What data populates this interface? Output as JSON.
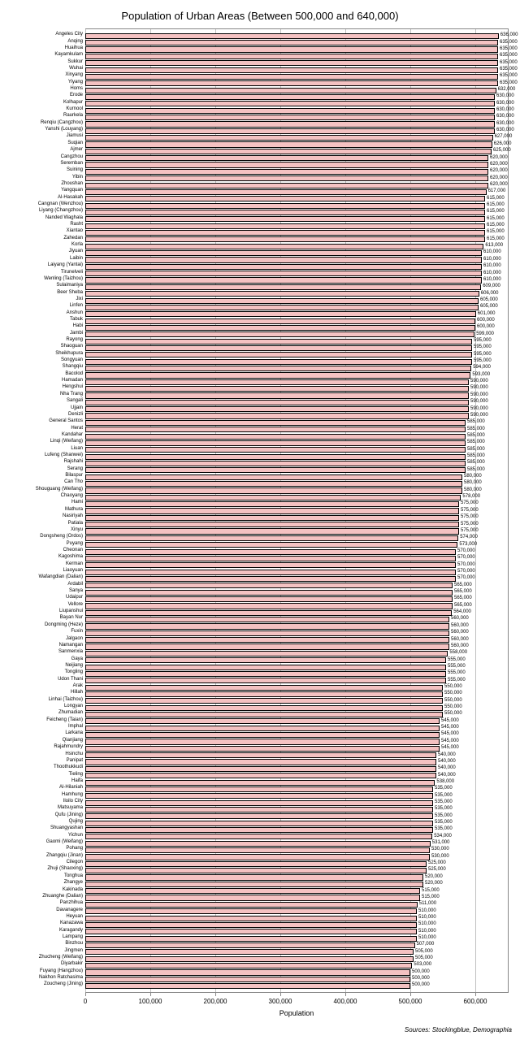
{
  "chart": {
    "type": "bar-horizontal",
    "title": "Population of Urban Areas (Between 500,000 and 640,000)",
    "x_axis_label": "Population",
    "sources": "Sources: Stockingblue, Demographia",
    "bar_color": "#f4c2c2",
    "bar_border": "#000000",
    "background": "#ffffff",
    "grid_color": "#bfbfbf",
    "title_fontsize": 13,
    "label_fontsize": 6,
    "value_fontsize": 6,
    "axis_fontsize": 8,
    "x_min": 0,
    "x_max": 650000,
    "x_ticks": [
      0,
      100000,
      200000,
      300000,
      400000,
      500000,
      600000
    ],
    "x_tick_labels": [
      "0",
      "100,000",
      "200,000",
      "300,000",
      "400,000",
      "500,000",
      "600,000"
    ],
    "data": [
      {
        "label": "Angeles City",
        "value": 636000,
        "vlabel": "636,000"
      },
      {
        "label": "Anqing",
        "value": 635000,
        "vlabel": "635,000"
      },
      {
        "label": "Huaihua",
        "value": 635000,
        "vlabel": "635,000"
      },
      {
        "label": "Kayamkulam",
        "value": 635000,
        "vlabel": "635,000"
      },
      {
        "label": "Sukkur",
        "value": 635000,
        "vlabel": "635,000"
      },
      {
        "label": "Wuhai",
        "value": 635000,
        "vlabel": "635,000"
      },
      {
        "label": "Xinyang",
        "value": 635000,
        "vlabel": "635,000"
      },
      {
        "label": "Yiyang",
        "value": 635000,
        "vlabel": "635,000"
      },
      {
        "label": "Homs",
        "value": 632000,
        "vlabel": "632,000"
      },
      {
        "label": "Erode",
        "value": 630000,
        "vlabel": "630,000"
      },
      {
        "label": "Kolhapur",
        "value": 630000,
        "vlabel": "630,000"
      },
      {
        "label": "Kurnool",
        "value": 630000,
        "vlabel": "630,000"
      },
      {
        "label": "Raurkela",
        "value": 630000,
        "vlabel": "630,000"
      },
      {
        "label": "Renqiu (Cangzhou)",
        "value": 630000,
        "vlabel": "630,000"
      },
      {
        "label": "Yanshi (Louyang)",
        "value": 630000,
        "vlabel": "630,000"
      },
      {
        "label": "Jiamusi",
        "value": 627000,
        "vlabel": "627,000"
      },
      {
        "label": "Suqian",
        "value": 626000,
        "vlabel": "626,000"
      },
      {
        "label": "Ajmer",
        "value": 625000,
        "vlabel": "625,000"
      },
      {
        "label": "Cangzhou",
        "value": 620000,
        "vlabel": "620,000"
      },
      {
        "label": "Seremban",
        "value": 620000,
        "vlabel": "620,000"
      },
      {
        "label": "Suining",
        "value": 620000,
        "vlabel": "620,000"
      },
      {
        "label": "Yibin",
        "value": 620000,
        "vlabel": "620,000"
      },
      {
        "label": "Zhoushan",
        "value": 620000,
        "vlabel": "620,000"
      },
      {
        "label": "Yangquan",
        "value": 617000,
        "vlabel": "617,000"
      },
      {
        "label": "Al-Hasakah",
        "value": 615000,
        "vlabel": "615,000"
      },
      {
        "label": "Cangnan (Wenzhou)",
        "value": 615000,
        "vlabel": "615,000"
      },
      {
        "label": "Liyang (Changzhou)",
        "value": 615000,
        "vlabel": "615,000"
      },
      {
        "label": "Nanded Waghala",
        "value": 615000,
        "vlabel": "615,000"
      },
      {
        "label": "Rasht",
        "value": 615000,
        "vlabel": "615,000"
      },
      {
        "label": "Xiantao",
        "value": 615000,
        "vlabel": "615,000"
      },
      {
        "label": "Zahedan",
        "value": 615000,
        "vlabel": "615,000"
      },
      {
        "label": "Korla",
        "value": 613000,
        "vlabel": "613,000"
      },
      {
        "label": "Jiyuan",
        "value": 610000,
        "vlabel": "610,000"
      },
      {
        "label": "Laibin",
        "value": 610000,
        "vlabel": "610,000"
      },
      {
        "label": "Laiyang (Yantai)",
        "value": 610000,
        "vlabel": "610,000"
      },
      {
        "label": "Tirunelveli",
        "value": 610000,
        "vlabel": "610,000"
      },
      {
        "label": "Wenling (Taizhou)",
        "value": 610000,
        "vlabel": "610,000"
      },
      {
        "label": "Sulaimaniya",
        "value": 609000,
        "vlabel": "609,000"
      },
      {
        "label": "Beer Sheba",
        "value": 606000,
        "vlabel": "606,000"
      },
      {
        "label": "Jixi",
        "value": 605000,
        "vlabel": "605,000"
      },
      {
        "label": "Linfen",
        "value": 605000,
        "vlabel": "605,000"
      },
      {
        "label": "Anshun",
        "value": 601000,
        "vlabel": "601,000"
      },
      {
        "label": "Tabuk",
        "value": 600000,
        "vlabel": "600,000"
      },
      {
        "label": "Habi",
        "value": 600000,
        "vlabel": "600,000"
      },
      {
        "label": "Jambi",
        "value": 599000,
        "vlabel": "599,000"
      },
      {
        "label": "Rayong",
        "value": 595000,
        "vlabel": "595,000"
      },
      {
        "label": "Shaoguan",
        "value": 595000,
        "vlabel": "595,000"
      },
      {
        "label": "Sheikhupura",
        "value": 595000,
        "vlabel": "595,000"
      },
      {
        "label": "Songyuan",
        "value": 595000,
        "vlabel": "595,000"
      },
      {
        "label": "Shangqiu",
        "value": 594000,
        "vlabel": "594,000"
      },
      {
        "label": "Bacolod",
        "value": 593000,
        "vlabel": "593,000"
      },
      {
        "label": "Hamadan",
        "value": 590000,
        "vlabel": "590,000"
      },
      {
        "label": "Hengshui",
        "value": 590000,
        "vlabel": "590,000"
      },
      {
        "label": "Nha Trang",
        "value": 590000,
        "vlabel": "590,000"
      },
      {
        "label": "Sangali",
        "value": 590000,
        "vlabel": "590,000"
      },
      {
        "label": "Ujjain",
        "value": 590000,
        "vlabel": "590,000"
      },
      {
        "label": "Denizli",
        "value": 590000,
        "vlabel": "590,000"
      },
      {
        "label": "General Santos",
        "value": 585000,
        "vlabel": "585,000"
      },
      {
        "label": "Herat",
        "value": 585000,
        "vlabel": "585,000"
      },
      {
        "label": "Kandahar",
        "value": 585000,
        "vlabel": "585,000"
      },
      {
        "label": "Linqi (Weifang)",
        "value": 585000,
        "vlabel": "585,000"
      },
      {
        "label": "Liuan",
        "value": 585000,
        "vlabel": "585,000"
      },
      {
        "label": "Lufeng (Shanwei)",
        "value": 585000,
        "vlabel": "585,000"
      },
      {
        "label": "Rajshahi",
        "value": 585000,
        "vlabel": "585,000"
      },
      {
        "label": "Serang",
        "value": 585000,
        "vlabel": "585,000"
      },
      {
        "label": "Bilaspur",
        "value": 580000,
        "vlabel": "580,000"
      },
      {
        "label": "Can Tho",
        "value": 580000,
        "vlabel": "580,000"
      },
      {
        "label": "Shouguang (Weifang)",
        "value": 580000,
        "vlabel": "580,000"
      },
      {
        "label": "Chaoyang",
        "value": 578000,
        "vlabel": "578,000"
      },
      {
        "label": "Hami",
        "value": 575000,
        "vlabel": "575,000"
      },
      {
        "label": "Mathura",
        "value": 575000,
        "vlabel": "575,000"
      },
      {
        "label": "Nasiriyah",
        "value": 575000,
        "vlabel": "575,000"
      },
      {
        "label": "Patiala",
        "value": 575000,
        "vlabel": "575,000"
      },
      {
        "label": "Xinyu",
        "value": 575000,
        "vlabel": "575,000"
      },
      {
        "label": "Dongsheng (Ordos)",
        "value": 574000,
        "vlabel": "574,000"
      },
      {
        "label": "Puyang",
        "value": 573000,
        "vlabel": "573,000"
      },
      {
        "label": "Cheonan",
        "value": 570000,
        "vlabel": "570,000"
      },
      {
        "label": "Kagoshima",
        "value": 570000,
        "vlabel": "570,000"
      },
      {
        "label": "Kerman",
        "value": 570000,
        "vlabel": "570,000"
      },
      {
        "label": "Liaoyuan",
        "value": 570000,
        "vlabel": "570,000"
      },
      {
        "label": "Wafangdian (Dalian)",
        "value": 570000,
        "vlabel": "570,000"
      },
      {
        "label": "Ardabil",
        "value": 565000,
        "vlabel": "565,000"
      },
      {
        "label": "Sanya",
        "value": 565000,
        "vlabel": "565,000"
      },
      {
        "label": "Udaipur",
        "value": 565000,
        "vlabel": "565,000"
      },
      {
        "label": "Vellore",
        "value": 565000,
        "vlabel": "565,000"
      },
      {
        "label": "Liupanshui",
        "value": 564000,
        "vlabel": "564,000"
      },
      {
        "label": "Bayan Nur",
        "value": 560000,
        "vlabel": "560,000"
      },
      {
        "label": "Dongming (Heze)",
        "value": 560000,
        "vlabel": "560,000"
      },
      {
        "label": "Fuxin",
        "value": 560000,
        "vlabel": "560,000"
      },
      {
        "label": "Jalgaon",
        "value": 560000,
        "vlabel": "560,000"
      },
      {
        "label": "Namangan",
        "value": 560000,
        "vlabel": "560,000"
      },
      {
        "label": "Sanmenxia",
        "value": 558000,
        "vlabel": "558,000"
      },
      {
        "label": "Gaya",
        "value": 555000,
        "vlabel": "555,000"
      },
      {
        "label": "Neijiang",
        "value": 555000,
        "vlabel": "555,000"
      },
      {
        "label": "Tongling",
        "value": 555000,
        "vlabel": "555,000"
      },
      {
        "label": "Udon Thani",
        "value": 555000,
        "vlabel": "555,000"
      },
      {
        "label": "Arak",
        "value": 550000,
        "vlabel": "550,000"
      },
      {
        "label": "Hillah",
        "value": 550000,
        "vlabel": "550,000"
      },
      {
        "label": "Linhai (Taizhou)",
        "value": 550000,
        "vlabel": "550,000"
      },
      {
        "label": "Longyan",
        "value": 550000,
        "vlabel": "550,000"
      },
      {
        "label": "Zhumadian",
        "value": 550000,
        "vlabel": "550,000"
      },
      {
        "label": "Feicheng (Taian)",
        "value": 545000,
        "vlabel": "545,000"
      },
      {
        "label": "Imphal",
        "value": 545000,
        "vlabel": "545,000"
      },
      {
        "label": "Larkana",
        "value": 545000,
        "vlabel": "545,000"
      },
      {
        "label": "Qianjiang",
        "value": 545000,
        "vlabel": "545,000"
      },
      {
        "label": "Rajahmundry",
        "value": 545000,
        "vlabel": "545,000"
      },
      {
        "label": "Hsinchu",
        "value": 540000,
        "vlabel": "540,000"
      },
      {
        "label": "Panipat",
        "value": 540000,
        "vlabel": "540,000"
      },
      {
        "label": "Thoothukkudi",
        "value": 540000,
        "vlabel": "540,000"
      },
      {
        "label": "Tieling",
        "value": 540000,
        "vlabel": "540,000"
      },
      {
        "label": "Haifa",
        "value": 538000,
        "vlabel": "538,000"
      },
      {
        "label": "Al-Hilaniah",
        "value": 535000,
        "vlabel": "535,000"
      },
      {
        "label": "Hamhung",
        "value": 535000,
        "vlabel": "535,000"
      },
      {
        "label": "Iloilo City",
        "value": 535000,
        "vlabel": "535,000"
      },
      {
        "label": "Matsuyama",
        "value": 535000,
        "vlabel": "535,000"
      },
      {
        "label": "Qufu (Jining)",
        "value": 535000,
        "vlabel": "535,000"
      },
      {
        "label": "Qujing",
        "value": 535000,
        "vlabel": "535,000"
      },
      {
        "label": "Shuangyashan",
        "value": 535000,
        "vlabel": "535,000"
      },
      {
        "label": "Yichun",
        "value": 534000,
        "vlabel": "534,000"
      },
      {
        "label": "Gaomi (Weifang)",
        "value": 531000,
        "vlabel": "531,000"
      },
      {
        "label": "Pohang",
        "value": 530000,
        "vlabel": "530,000"
      },
      {
        "label": "Zhangqiu (Jinan)",
        "value": 530000,
        "vlabel": "530,000"
      },
      {
        "label": "Cilegon",
        "value": 525000,
        "vlabel": "525,000"
      },
      {
        "label": "Zhuji (Shaoxing)",
        "value": 525000,
        "vlabel": "525,000"
      },
      {
        "label": "Tonghua",
        "value": 520000,
        "vlabel": "520,000"
      },
      {
        "label": "Zhangye",
        "value": 520000,
        "vlabel": "520,000"
      },
      {
        "label": "Kakinada",
        "value": 515000,
        "vlabel": "515,000"
      },
      {
        "label": "Zhuanghe (Dalian)",
        "value": 515000,
        "vlabel": "515,000"
      },
      {
        "label": "Panzhihua",
        "value": 511000,
        "vlabel": "511,000"
      },
      {
        "label": "Davanagere",
        "value": 510000,
        "vlabel": "510,000"
      },
      {
        "label": "Heyuan",
        "value": 510000,
        "vlabel": "510,000"
      },
      {
        "label": "Kanazawa",
        "value": 510000,
        "vlabel": "510,000"
      },
      {
        "label": "Karagandy",
        "value": 510000,
        "vlabel": "510,000"
      },
      {
        "label": "Lampang",
        "value": 510000,
        "vlabel": "510,000"
      },
      {
        "label": "Binzhou",
        "value": 507000,
        "vlabel": "507,000"
      },
      {
        "label": "Jingmen",
        "value": 505000,
        "vlabel": "505,000"
      },
      {
        "label": "Zhucheng (Weifang)",
        "value": 505000,
        "vlabel": "505,000"
      },
      {
        "label": "Diyarbakir",
        "value": 503000,
        "vlabel": "503,000"
      },
      {
        "label": "Fuyang (Hangzhou)",
        "value": 500000,
        "vlabel": "500,000"
      },
      {
        "label": "Nakhon Ratchasima",
        "value": 500000,
        "vlabel": "500,000"
      },
      {
        "label": "Zoucheng (Jining)",
        "value": 500000,
        "vlabel": "500,000"
      }
    ]
  }
}
